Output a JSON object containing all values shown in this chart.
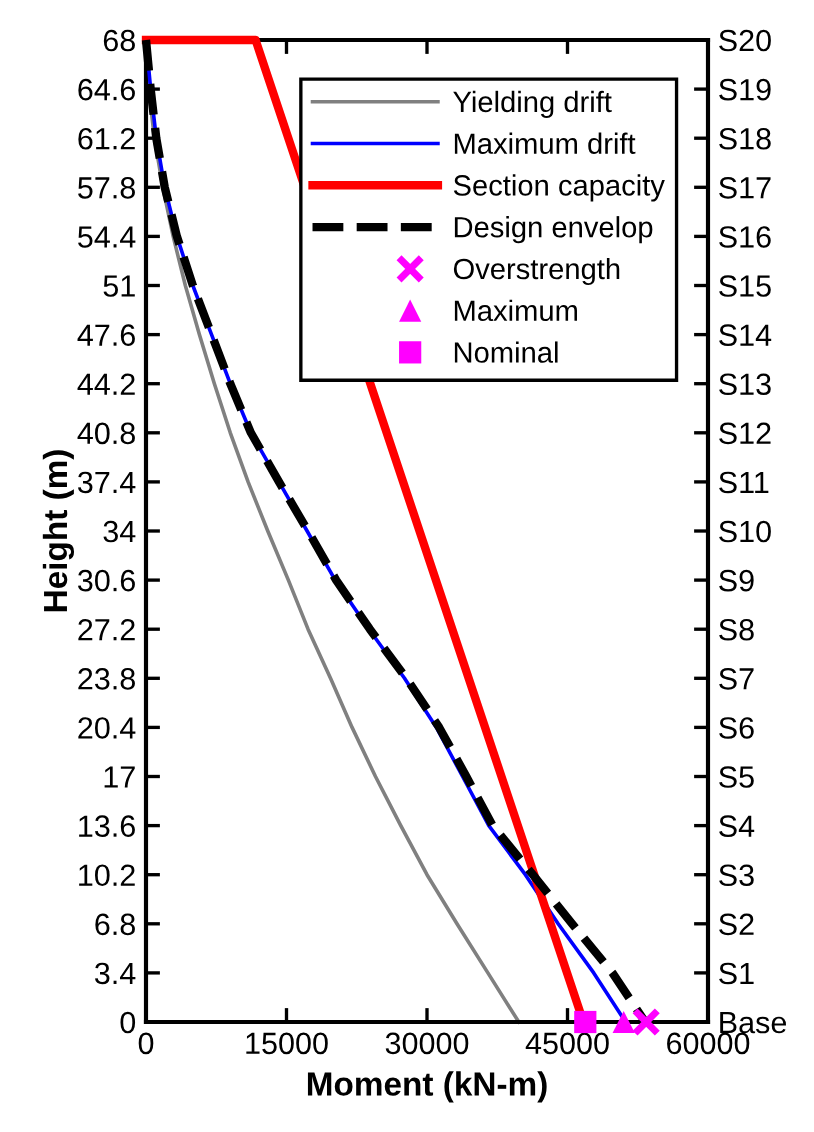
{
  "chart_data": {
    "type": "line",
    "xlabel": "Moment (kN-m)",
    "ylabel": "Height (m)",
    "xlim": [
      0,
      60000
    ],
    "xticks": [
      0,
      15000,
      30000,
      45000,
      60000
    ],
    "ylim": [
      0,
      68
    ],
    "yticks": [
      0,
      3.4,
      6.8,
      10.2,
      13.6,
      17,
      20.4,
      23.8,
      27.2,
      30.6,
      34,
      37.4,
      40.8,
      44.2,
      47.6,
      51,
      54.4,
      57.8,
      61.2,
      64.6,
      68
    ],
    "y2_categories": [
      "S20",
      "S19",
      "S18",
      "S17",
      "S16",
      "S15",
      "S14",
      "S13",
      "S12",
      "S11",
      "S10",
      "S9",
      "S8",
      "S7",
      "S6",
      "S5",
      "S4",
      "S3",
      "S2",
      "S1",
      "Base"
    ],
    "grid": false,
    "legend": "top right",
    "series": [
      {
        "name": "Yielding drift",
        "color": "#808080",
        "line_style": "solid",
        "x": [
          0,
          300,
          900,
          1800,
          2900,
          4200,
          5700,
          7300,
          9000,
          10900,
          13000,
          15200,
          17300,
          19700,
          22000,
          24500,
          27200,
          30000,
          33200,
          36500,
          39800
        ],
        "values": [
          68,
          64.6,
          61.2,
          57.8,
          54.4,
          51,
          47.6,
          44.2,
          40.8,
          37.4,
          34,
          30.6,
          27.2,
          23.8,
          20.4,
          17,
          13.6,
          10.2,
          6.8,
          3.4,
          0
        ]
      },
      {
        "name": "Maximum drift",
        "color": "#0000ff",
        "line_style": "solid",
        "x": [
          0,
          500,
          1100,
          2000,
          3300,
          5000,
          7000,
          9000,
          11200,
          14200,
          17200,
          20200,
          23800,
          27600,
          31000,
          33800,
          36600,
          40500,
          44000,
          47800,
          51200
        ],
        "values": [
          68,
          64.6,
          61.2,
          57.8,
          54.4,
          51,
          47.6,
          44.2,
          40.8,
          37.4,
          34,
          30.6,
          27.2,
          23.8,
          20.4,
          17,
          13.6,
          10.2,
          6.8,
          3.4,
          0
        ]
      },
      {
        "name": "Section capacity",
        "color": "#ff0000",
        "line_style": "solid",
        "x": [
          0,
          11700,
          46700
        ],
        "values": [
          68,
          68,
          0
        ]
      },
      {
        "name": "Design envelop",
        "color": "#000000",
        "line_style": "dashed",
        "x": [
          0,
          500,
          1100,
          2000,
          3300,
          5000,
          7000,
          9000,
          11200,
          14200,
          17300,
          20300,
          23900,
          27800,
          31300,
          34200,
          37000,
          41300,
          45500,
          49800,
          53300
        ],
        "values": [
          68,
          64.6,
          61.2,
          57.8,
          54.4,
          51,
          47.6,
          44.2,
          40.8,
          37.4,
          34,
          30.6,
          27.2,
          23.8,
          20.4,
          17,
          13.6,
          10.2,
          6.8,
          3.4,
          0
        ]
      },
      {
        "name": "Overstrength",
        "type": "scatter",
        "marker": "cross",
        "color": "#ff00ff",
        "x": [
          53400
        ],
        "values": [
          0
        ]
      },
      {
        "name": "Maximum",
        "type": "scatter",
        "marker": "triangle",
        "color": "#ff00ff",
        "x": [
          51000
        ],
        "values": [
          0
        ]
      },
      {
        "name": "Nominal",
        "type": "scatter",
        "marker": "square",
        "color": "#ff00ff",
        "x": [
          46900
        ],
        "values": [
          0
        ]
      }
    ]
  }
}
